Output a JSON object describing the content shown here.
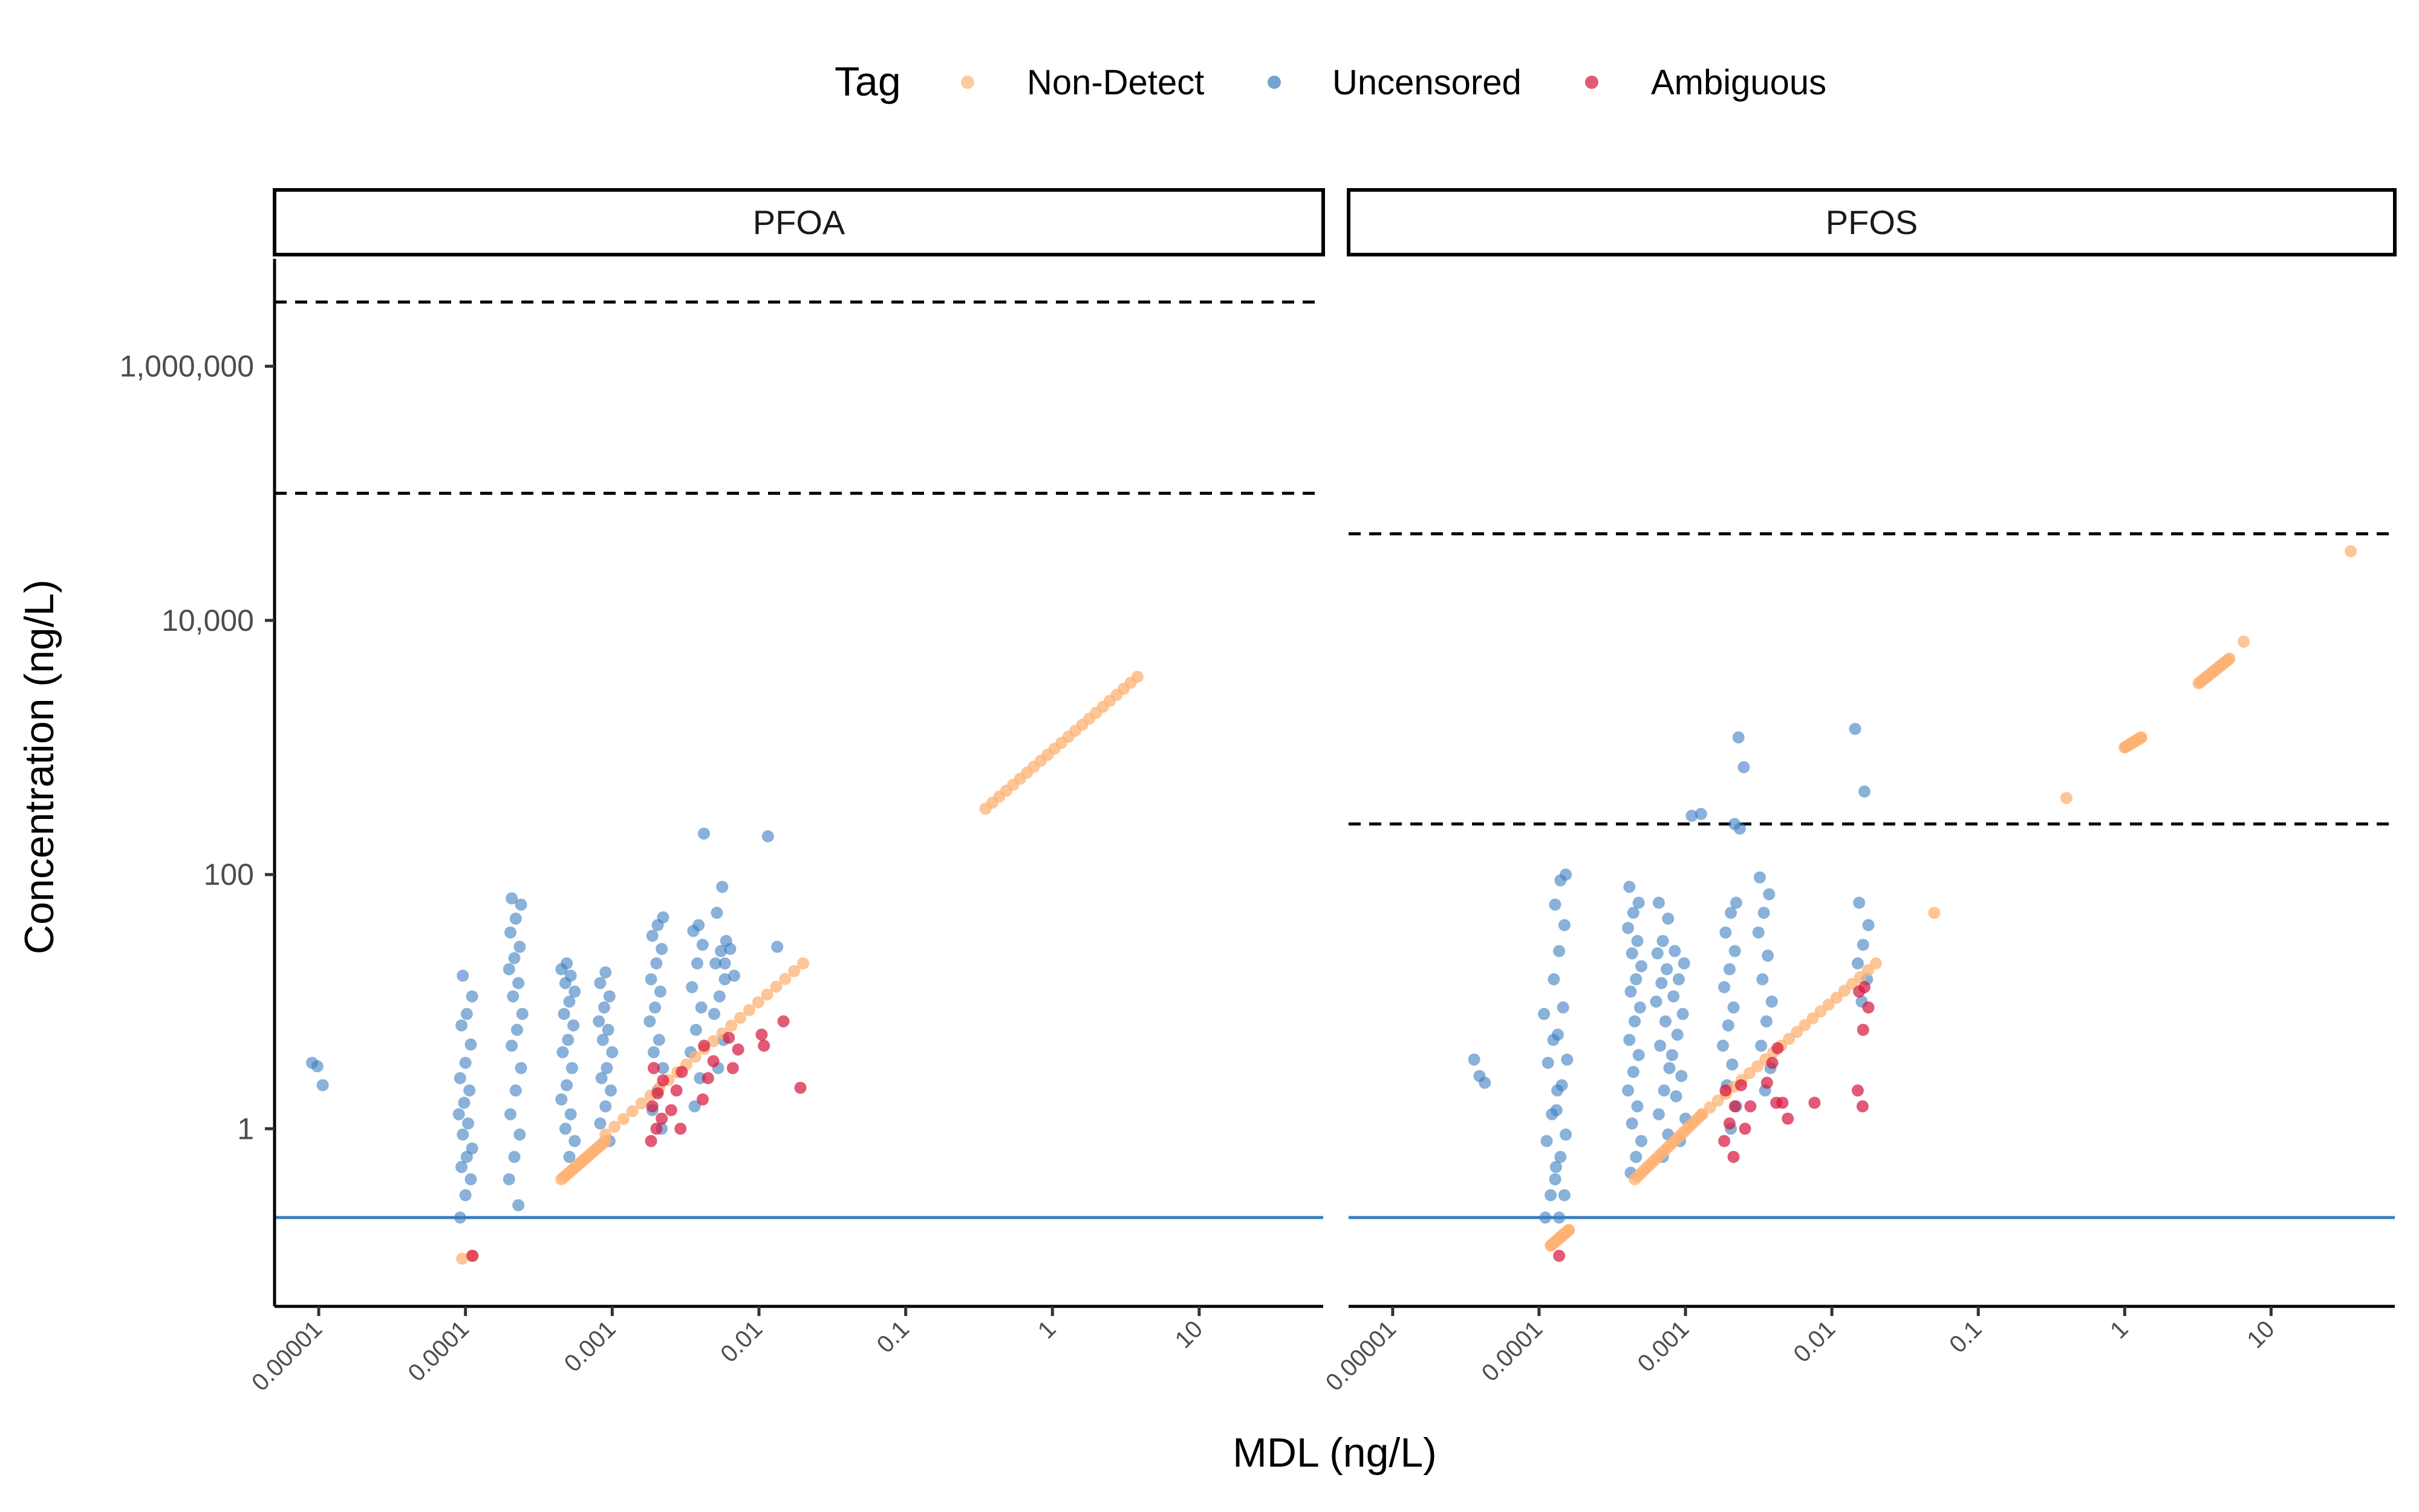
{
  "chart_data": {
    "type": "scatter",
    "facets": [
      "PFOA",
      "PFOS"
    ],
    "xlabel": "MDL (ng/L)",
    "ylabel": "Concentration (ng/L)",
    "x_scale": "log10",
    "y_scale": "log10",
    "xlim": [
      5e-06,
      70
    ],
    "ylim": [
      0.04,
      7000000
    ],
    "x_ticks": [
      {
        "value": 1e-05,
        "label": "0.00001"
      },
      {
        "value": 0.0001,
        "label": "0.0001"
      },
      {
        "value": 0.001,
        "label": "0.001"
      },
      {
        "value": 0.01,
        "label": "0.01"
      },
      {
        "value": 0.1,
        "label": "0.1"
      },
      {
        "value": 1,
        "label": "1"
      },
      {
        "value": 10,
        "label": "10"
      }
    ],
    "y_ticks": [
      {
        "value": 1,
        "label": "1"
      },
      {
        "value": 100,
        "label": "100"
      },
      {
        "value": 10000,
        "label": "10,000"
      },
      {
        "value": 1000000,
        "label": "1,000,000"
      }
    ],
    "legend": {
      "title": "Tag",
      "position": "top",
      "items": [
        {
          "key": "nd",
          "label": "Non-Detect",
          "color": "#fdb274"
        },
        {
          "key": "unc",
          "label": "Uncensored",
          "color": "#3a7dbf"
        },
        {
          "key": "amb",
          "label": "Ambiguous",
          "color": "#d6143a"
        }
      ]
    },
    "reference_lines": {
      "PFOA": {
        "solid": [
          0.2
        ],
        "dashed": [
          100000,
          3200000
        ]
      },
      "PFOS": {
        "solid": [
          0.2
        ],
        "dashed": [
          250,
          48000
        ]
      }
    },
    "series": {
      "PFOA": {
        "uncensored": [
          {
            "x": 1e-05,
            "y": [
              3.3,
              3.1,
              2.2
            ]
          },
          {
            "x": 0.0001,
            "y": [
              0.2,
              0.3,
              0.4,
              0.5,
              0.6,
              0.7,
              0.9,
              1.1,
              1.3,
              1.6,
              2.0,
              2.5,
              3.3,
              4.6,
              6.5,
              8.0,
              11,
              16
            ]
          },
          {
            "x": 0.00022,
            "y": [
              0.25,
              0.4,
              0.6,
              0.9,
              1.3,
              2,
              3,
              4.5,
              6,
              8,
              11,
              14,
              18,
              22,
              27,
              35,
              45,
              58,
              65
            ]
          },
          {
            "x": 0.0005,
            "y": [
              0.6,
              0.8,
              1,
              1.3,
              1.7,
              2.2,
              3,
              4,
              5,
              6.5,
              8,
              10,
              12,
              14,
              16,
              18,
              20
            ]
          },
          {
            "x": 0.0009,
            "y": [
              0.8,
              1.1,
              1.5,
              2,
              2.5,
              3,
              4,
              5,
              6,
              7,
              9,
              11,
              14,
              17
            ]
          },
          {
            "x": 0.002,
            "y": [
              1,
              1.4,
              2,
              3,
              4,
              5,
              7,
              9,
              12,
              15,
              20,
              26,
              33,
              40,
              46
            ]
          },
          {
            "x": 0.0038,
            "y": [
              1.5,
              2.5,
              4,
              6,
              9,
              13,
              20,
              28,
              36,
              40,
              210
            ]
          },
          {
            "x": 0.0055,
            "y": [
              3,
              5,
              8,
              11,
              15,
              20,
              25,
              30,
              50,
              80
            ]
          },
          {
            "x": 0.012,
            "y": [
              27,
              200
            ]
          },
          {
            "x": 0.0065,
            "y": [
              16,
              20,
              26
            ]
          }
        ],
        "nondetect": {
          "segments": [
            {
              "x_from": 0.00045,
              "x_to": 0.0009,
              "y_from": 0.4,
              "y_to": 0.8
            },
            {
              "x_from": 0.0009,
              "x_to": 0.02,
              "y_from": 0.9,
              "y_to": 20
            },
            {
              "x_from": 0.35,
              "x_to": 3.8,
              "y_from": 330,
              "y_to": 3600
            }
          ],
          "points": [
            {
              "x": 9.5e-05,
              "y": 0.095
            },
            {
              "x": 0.00011,
              "y": 0.1
            }
          ]
        },
        "ambiguous": [
          {
            "x": 0.000105,
            "y": 0.1
          },
          {
            "x": 0.002,
            "y": [
              0.8,
              1,
              1.2,
              1.5,
              1.9,
              2.4,
              3
            ]
          },
          {
            "x": 0.0028,
            "y": [
              1,
              1.4,
              2,
              2.8
            ]
          },
          {
            "x": 0.0045,
            "y": [
              1.7,
              2.5,
              3.4,
              4.5
            ]
          },
          {
            "x": 0.0065,
            "y": [
              3,
              4.2,
              5.2
            ]
          },
          {
            "x": 0.01,
            "y": [
              5.5
            ]
          },
          {
            "x": 0.012,
            "y": [
              4.5
            ]
          },
          {
            "x": 0.015,
            "y": [
              7
            ]
          },
          {
            "x": 0.018,
            "y": [
              2.1
            ]
          }
        ]
      },
      "PFOS": {
        "uncensored": [
          {
            "x": 4e-05,
            "y": [
              3.5,
              2.6,
              2.3
            ]
          },
          {
            "x": 0.00012,
            "y": [
              0.2,
              0.3,
              0.5,
              0.8,
              1.3,
              2,
              3.3,
              5,
              8
            ]
          },
          {
            "x": 0.00014,
            "y": [
              0.2,
              0.3,
              0.4,
              0.6,
              0.9,
              1.4,
              2.2,
              3.5,
              5.5,
              9,
              15,
              25,
              40,
              58,
              90,
              100
            ]
          },
          {
            "x": 0.00045,
            "y": [
              0.45,
              0.6,
              0.8,
              1.1,
              1.5,
              2,
              2.8,
              3.8,
              5,
              7,
              9,
              12,
              15,
              19,
              24,
              30,
              38,
              50,
              60,
              80
            ]
          },
          {
            "x": 0.0007,
            "y": [
              0.6,
              0.9,
              1.3,
              2,
              3,
              4.5,
              7,
              10,
              14,
              18,
              24,
              30,
              45,
              60
            ]
          },
          {
            "x": 0.0009,
            "y": [
              0.8,
              1.2,
              1.8,
              2.6,
              3.8,
              5.5,
              8,
              11,
              15,
              20,
              25
            ]
          },
          {
            "x": 0.002,
            "y": [
              1,
              1.5,
              2.2,
              3.2,
              4.5,
              6.5,
              9,
              13,
              18,
              25,
              35,
              50,
              60
            ]
          },
          {
            "x": 0.0024,
            "y": [
              1200,
              700,
              250,
              230
            ]
          },
          {
            "x": 0.0012,
            "y": [
              300,
              290
            ]
          },
          {
            "x": 0.0035,
            "y": [
              2,
              3,
              4.5,
              7,
              10,
              15,
              23,
              35,
              50,
              70,
              95
            ]
          },
          {
            "x": 0.016,
            "y": [
              10,
              15,
              20,
              28,
              40,
              60,
              450,
              1400
            ]
          }
        ],
        "nondetect": {
          "segments": [
            {
              "x_from": 0.00012,
              "x_to": 0.00016,
              "y_from": 0.12,
              "y_to": 0.16
            },
            {
              "x_from": 0.00045,
              "x_to": 0.0013,
              "y_from": 0.4,
              "y_to": 1.3
            },
            {
              "x_from": 0.0013,
              "x_to": 0.02,
              "y_from": 1.3,
              "y_to": 20
            },
            {
              "x_from": 1.0,
              "x_to": 1.3,
              "y_from": 1000,
              "y_to": 1200
            },
            {
              "x_from": 3.2,
              "x_to": 5.2,
              "y_from": 3200,
              "y_to": 5000
            }
          ],
          "points": [
            {
              "x": 0.05,
              "y": 50
            },
            {
              "x": 0.4,
              "y": 400
            },
            {
              "x": 6.5,
              "y": 6800
            },
            {
              "x": 35,
              "y": 35000
            }
          ]
        },
        "ambiguous": [
          {
            "x": 0.00014,
            "y": 0.1
          },
          {
            "x": 0.002,
            "y": [
              0.6,
              0.8,
              1.1,
              1.5,
              2
            ]
          },
          {
            "x": 0.0025,
            "y": [
              1,
              1.5,
              2.2
            ]
          },
          {
            "x": 0.004,
            "y": [
              1.6,
              2.3,
              3.3,
              4.3
            ]
          },
          {
            "x": 0.005,
            "y": [
              1.6,
              1.2
            ]
          },
          {
            "x": 0.007,
            "y": [
              1.6
            ]
          },
          {
            "x": 0.016,
            "y": [
              2,
              6,
              9,
              12,
              13
            ]
          },
          {
            "x": 0.018,
            "y": [
              1.5
            ]
          }
        ]
      }
    }
  }
}
